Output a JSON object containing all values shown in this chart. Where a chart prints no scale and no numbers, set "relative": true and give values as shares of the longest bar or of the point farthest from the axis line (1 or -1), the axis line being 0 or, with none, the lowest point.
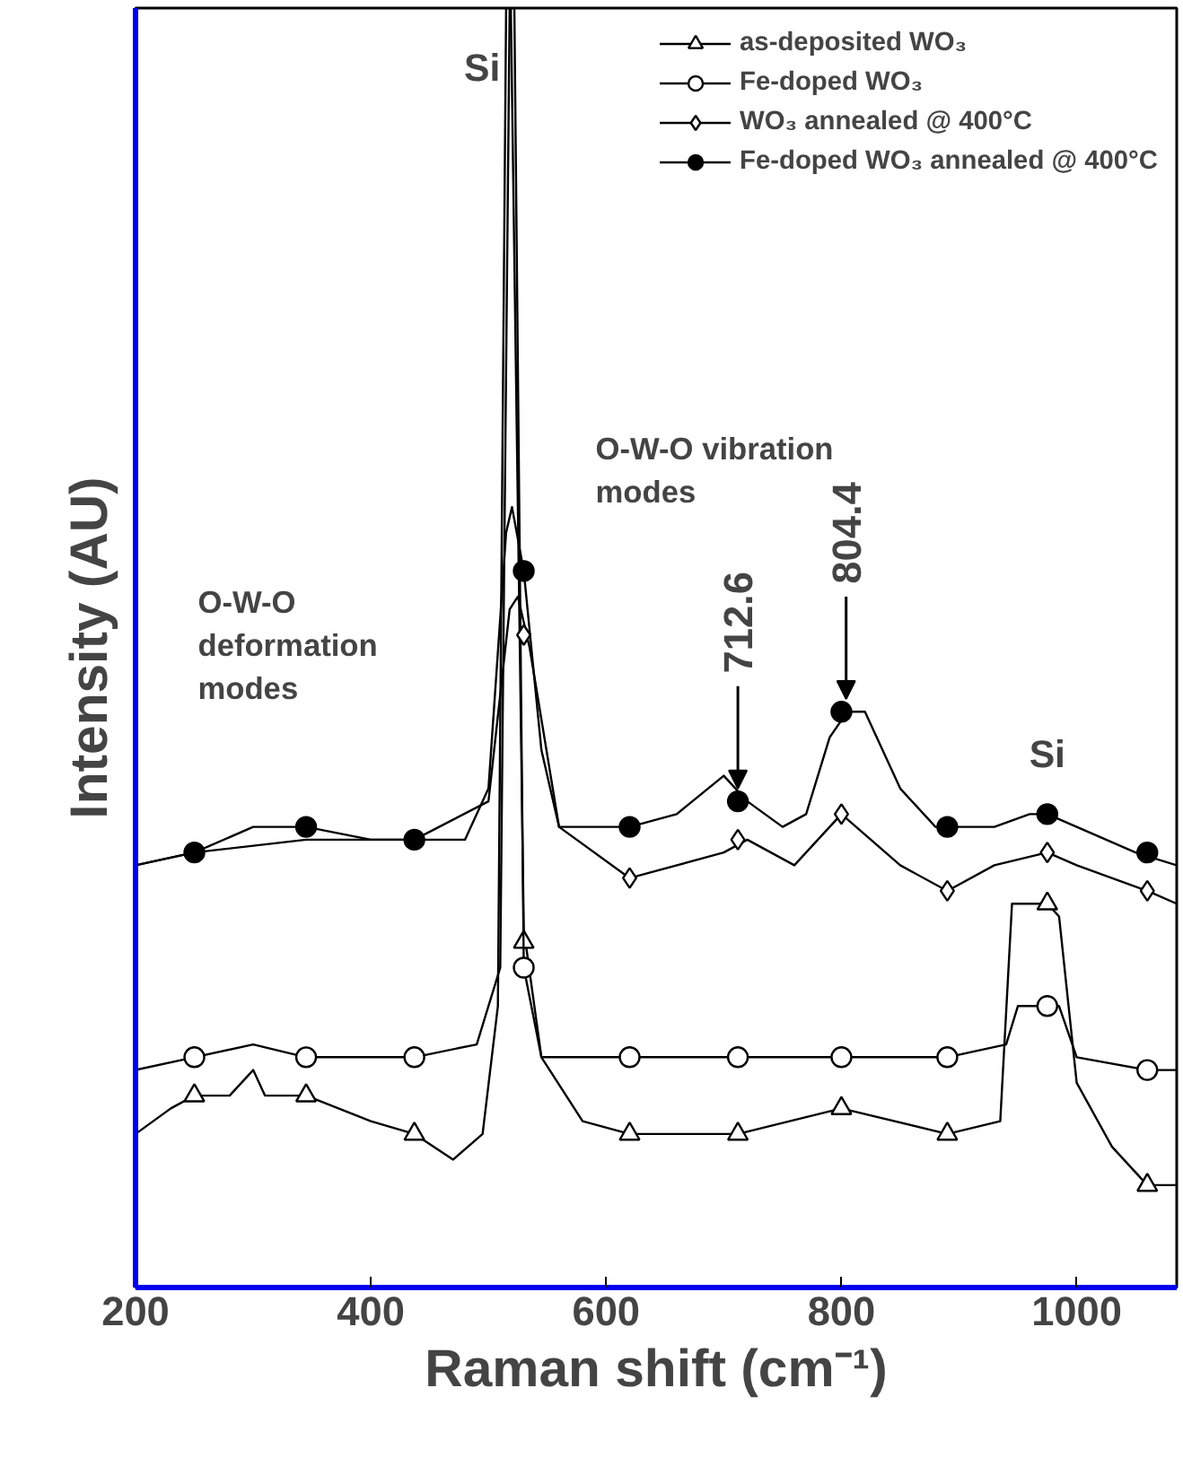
{
  "chart_data": {
    "type": "line",
    "xlabel": "Raman shift (cm⁻¹)",
    "ylabel": "Intensity (AU)",
    "relative": true,
    "xlim": [
      200,
      1085
    ],
    "xticks": [
      200,
      400,
      600,
      800,
      1000
    ],
    "grid": false,
    "legend": "top right",
    "line_style": "solid",
    "series": [
      {
        "name": "as-deposited WO₃",
        "color": "#000000",
        "x": [
          200,
          230,
          250,
          280,
          300,
          310,
          345,
          400,
          437,
          470,
          495,
          508,
          515,
          519,
          530,
          545,
          580,
          620,
          712,
          800,
          890,
          935,
          945,
          960,
          975,
          985,
          1000,
          1030,
          1060,
          1085
        ],
        "values": [
          0.12,
          0.14,
          0.15,
          0.15,
          0.17,
          0.15,
          0.15,
          0.13,
          0.12,
          0.1,
          0.12,
          0.22,
          1.0,
          1.0,
          0.28,
          0.18,
          0.13,
          0.12,
          0.12,
          0.14,
          0.12,
          0.13,
          0.3,
          0.3,
          0.3,
          0.29,
          0.16,
          0.11,
          0.08,
          0.08
        ]
      },
      {
        "type": "scatter",
        "marker": "triangle",
        "color": "#000000",
        "colors": [
          "#ffffff",
          "#ffffff",
          "#ffffff",
          "#ffffff",
          "#ffffff",
          "#ffffff",
          "#ffffff",
          "#ffffff",
          "#ffffff",
          "#ffffff"
        ],
        "x": [
          250,
          345,
          437,
          530,
          620,
          712,
          800,
          890,
          975,
          1060
        ],
        "values": [
          0.15,
          0.15,
          0.12,
          0.27,
          0.12,
          0.12,
          0.14,
          0.12,
          0.3,
          0.08
        ]
      },
      {
        "name": "Fe-doped WO₃",
        "color": "#000000",
        "x": [
          200,
          250,
          300,
          345,
          400,
          437,
          490,
          510,
          518,
          522,
          530,
          545,
          620,
          712,
          800,
          890,
          940,
          950,
          975,
          985,
          1000,
          1060,
          1085
        ],
        "values": [
          0.17,
          0.18,
          0.19,
          0.18,
          0.18,
          0.18,
          0.19,
          0.25,
          1.0,
          1.0,
          0.25,
          0.18,
          0.18,
          0.18,
          0.18,
          0.18,
          0.19,
          0.22,
          0.22,
          0.22,
          0.18,
          0.17,
          0.17
        ]
      },
      {
        "type": "scatter",
        "marker": "circle",
        "color": "#000000",
        "colors": [
          "#ffffff",
          "#ffffff",
          "#ffffff",
          "#ffffff",
          "#ffffff",
          "#ffffff",
          "#ffffff",
          "#ffffff",
          "#ffffff",
          "#ffffff"
        ],
        "x": [
          250,
          345,
          437,
          530,
          620,
          712,
          800,
          890,
          975,
          1060
        ],
        "values": [
          0.18,
          0.18,
          0.18,
          0.25,
          0.18,
          0.18,
          0.18,
          0.18,
          0.22,
          0.17
        ]
      },
      {
        "name": "WO₃ annealed @ 400°C",
        "color": "#000000",
        "x": [
          200,
          250,
          345,
          437,
          500,
          518,
          525,
          535,
          560,
          620,
          700,
          720,
          760,
          800,
          850,
          890,
          930,
          975,
          1000,
          1060,
          1085
        ],
        "values": [
          0.33,
          0.34,
          0.35,
          0.35,
          0.38,
          0.53,
          0.54,
          0.5,
          0.36,
          0.32,
          0.34,
          0.35,
          0.33,
          0.37,
          0.33,
          0.31,
          0.33,
          0.34,
          0.33,
          0.31,
          0.3
        ]
      },
      {
        "type": "scatter",
        "marker": "diamond",
        "color": "#000000",
        "colors": [
          "#ffffff",
          "#ffffff",
          "#ffffff",
          "#ffffff",
          "#ffffff",
          "#ffffff",
          "#ffffff"
        ],
        "x": [
          530,
          620,
          712,
          800,
          890,
          975,
          1060
        ],
        "values": [
          0.51,
          0.32,
          0.35,
          0.37,
          0.31,
          0.34,
          0.31
        ]
      },
      {
        "name": "Fe-doped WO₃ annealed @ 400°C",
        "color": "#000000",
        "x": [
          200,
          250,
          300,
          345,
          400,
          437,
          480,
          500,
          515,
          520,
          530,
          545,
          560,
          600,
          620,
          660,
          700,
          720,
          750,
          770,
          790,
          805,
          820,
          850,
          880,
          930,
          960,
          975,
          1000,
          1050,
          1085
        ],
        "values": [
          0.33,
          0.34,
          0.36,
          0.36,
          0.35,
          0.35,
          0.35,
          0.39,
          0.59,
          0.61,
          0.56,
          0.42,
          0.36,
          0.36,
          0.36,
          0.37,
          0.4,
          0.38,
          0.36,
          0.37,
          0.43,
          0.45,
          0.45,
          0.39,
          0.36,
          0.36,
          0.37,
          0.37,
          0.36,
          0.34,
          0.33
        ]
      },
      {
        "type": "scatter",
        "marker": "circle",
        "color": "#000000",
        "x": [
          250,
          345,
          437,
          530,
          620,
          712,
          800,
          890,
          975,
          1060
        ],
        "values": [
          0.34,
          0.36,
          0.35,
          0.56,
          0.36,
          0.38,
          0.45,
          0.36,
          0.37,
          0.34
        ]
      }
    ],
    "annotations": [
      {
        "text": "Si",
        "x": 518,
        "y": 0.97
      },
      "Si",
      {
        "text": "712.6",
        "x": 712,
        "y": 0.39
      },
      {
        "text": "804.4",
        "x": 804,
        "y": 0.46
      },
      "O-W-O\ndeformation\nmodes",
      "O-W-O vibration\nmodes"
    ]
  }
}
